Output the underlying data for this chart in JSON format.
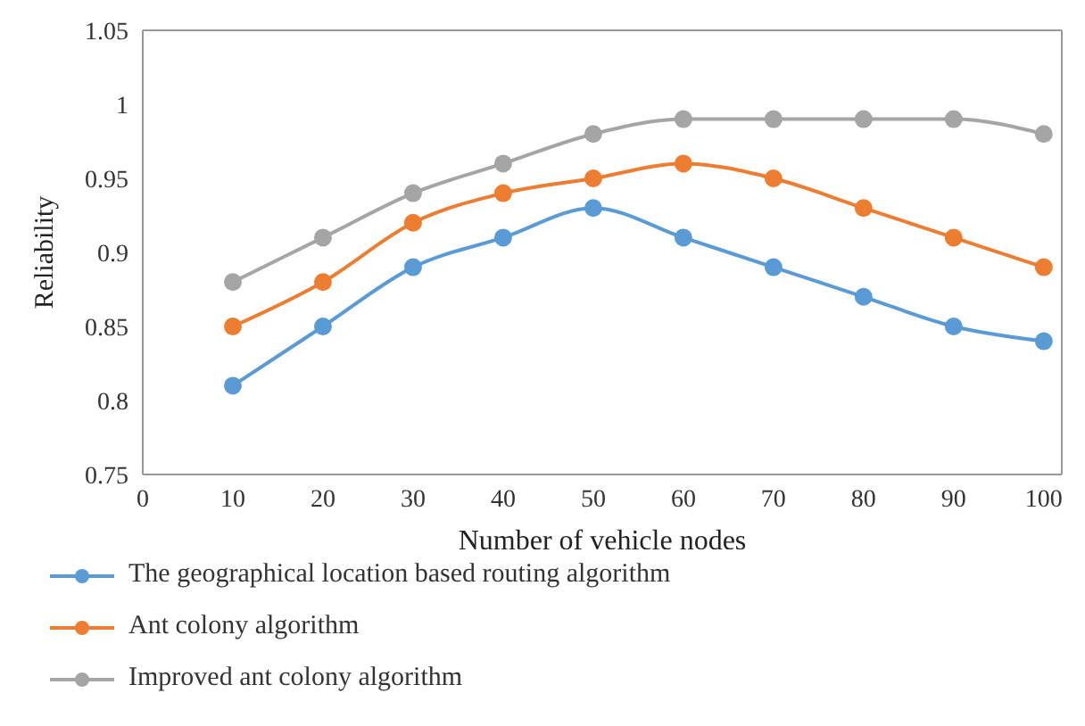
{
  "chart_data": {
    "type": "line",
    "xlabel": "Number of vehicle nodes",
    "ylabel": "Reliability",
    "x": [
      10,
      20,
      30,
      40,
      50,
      60,
      70,
      80,
      90,
      100
    ],
    "series": [
      {
        "name": "The geographical location based routing algorithm",
        "color": "#5b9bd5",
        "values": [
          0.81,
          0.85,
          0.89,
          0.91,
          0.93,
          0.91,
          0.89,
          0.87,
          0.85,
          0.84
        ]
      },
      {
        "name": "Ant colony algorithm",
        "color": "#ed7d31",
        "values": [
          0.85,
          0.88,
          0.92,
          0.94,
          0.95,
          0.96,
          0.95,
          0.93,
          0.91,
          0.89
        ]
      },
      {
        "name": "Improved ant colony algorithm",
        "color": "#a5a5a5",
        "values": [
          0.88,
          0.91,
          0.94,
          0.96,
          0.98,
          0.99,
          0.99,
          0.99,
          0.99,
          0.98
        ]
      }
    ],
    "xlim": [
      0,
      102
    ],
    "xticks": [
      0,
      10,
      20,
      30,
      40,
      50,
      60,
      70,
      80,
      90,
      100
    ],
    "ylim": [
      0.75,
      1.05
    ],
    "yticks": [
      0.75,
      0.8,
      0.85,
      0.9,
      0.95,
      1,
      1.05
    ],
    "grid": false,
    "legend": "bottom",
    "marker": "circle",
    "line_style": "solid"
  }
}
